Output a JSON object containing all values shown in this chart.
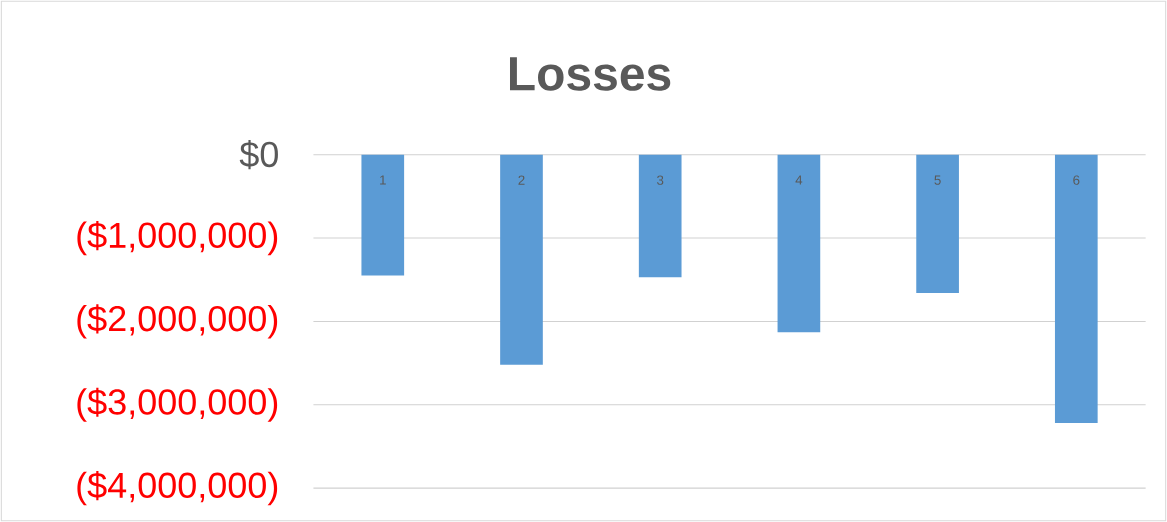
{
  "chart_data": {
    "type": "bar",
    "title": "Losses",
    "categories": [
      "1",
      "2",
      "3",
      "4",
      "5",
      "6"
    ],
    "values": [
      -1450000,
      -2520000,
      -1470000,
      -2130000,
      -1660000,
      -3220000
    ],
    "color": "#5b9bd5",
    "ylim": [
      -4000000,
      0
    ],
    "yticks": [
      {
        "value": 0,
        "label": "$0"
      },
      {
        "value": -1000000,
        "label": "($1,000,000)"
      },
      {
        "value": -2000000,
        "label": "($2,000,000)"
      },
      {
        "value": -3000000,
        "label": "($3,000,000)"
      },
      {
        "value": -4000000,
        "label": "($4,000,000)"
      }
    ],
    "grid": "y"
  }
}
